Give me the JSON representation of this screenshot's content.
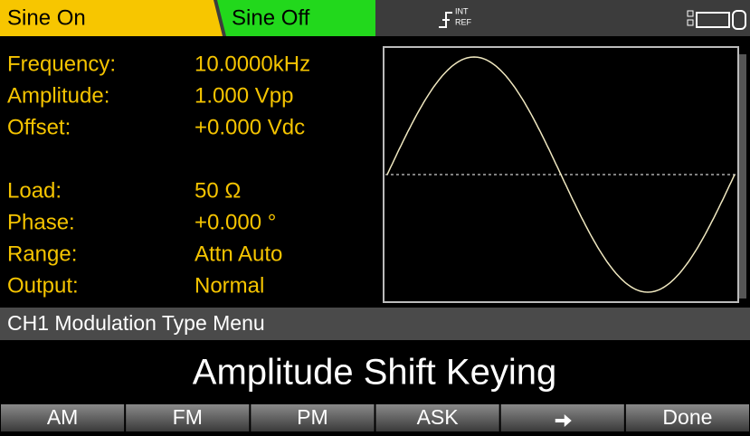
{
  "tabs": {
    "active": "Sine On",
    "inactive": "Sine Off",
    "ref_top": "INT",
    "ref_bottom": "REF"
  },
  "parameters": [
    {
      "label": "Frequency:",
      "value": "10.0000kHz"
    },
    {
      "label": "Amplitude:",
      "value": "1.000  Vpp"
    },
    {
      "label": "Offset:",
      "value": "+0.000  Vdc"
    },
    {
      "label": "Load:",
      "value": "50  Ω"
    },
    {
      "label": "Phase:",
      "value": "+0.000 °"
    },
    {
      "label": "Range:",
      "value": "Attn  Auto"
    },
    {
      "label": "Output:",
      "value": "Normal"
    }
  ],
  "menu_title": "CH1  Modulation  Type  Menu",
  "selection": "Amplitude Shift Keying",
  "softkeys": [
    "AM",
    "FM",
    "PM",
    "ASK",
    "Done"
  ]
}
